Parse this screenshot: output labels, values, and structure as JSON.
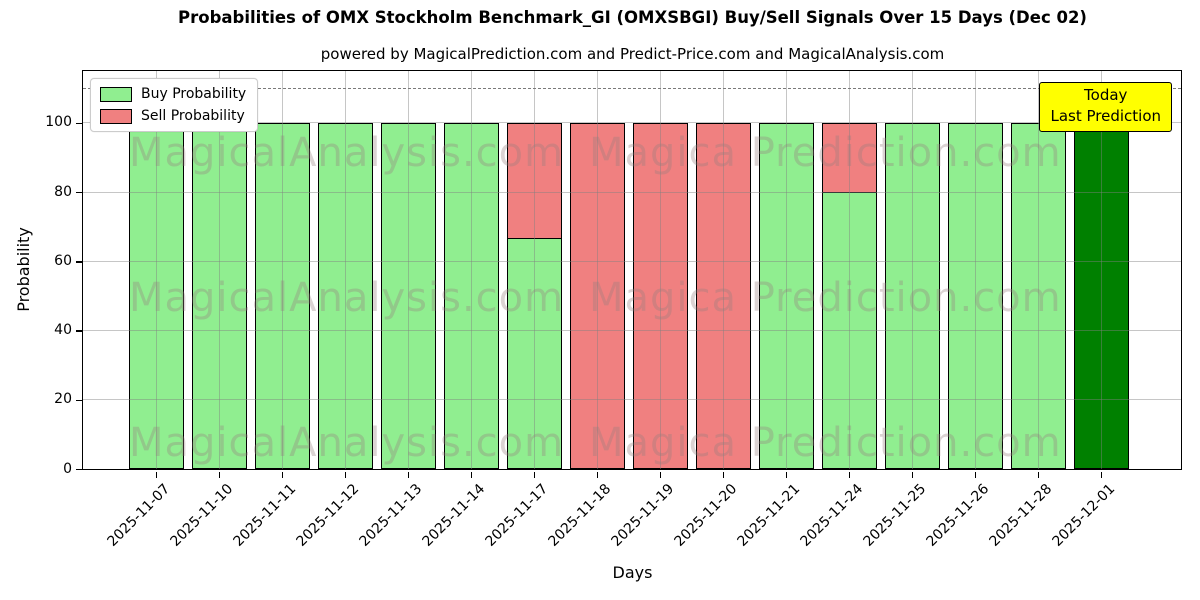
{
  "title": "Probabilities of OMX Stockholm Benchmark_GI (OMXSBGI) Buy/Sell Signals Over 15 Days (Dec 02)",
  "subtitle": "powered by MagicalPrediction.com and Predict-Price.com and MagicalAnalysis.com",
  "legend": {
    "items": [
      {
        "label": "Buy Probability",
        "color": "#90EE90"
      },
      {
        "label": "Sell Probability",
        "color": "#F08080"
      }
    ]
  },
  "annotation": {
    "line1": "Today",
    "line2": "Last Prediction",
    "bg_color": "#ffff00"
  },
  "watermark": {
    "left_text": "MagicalAnalysis.com",
    "right_text": "Magica Prediction.com"
  },
  "chart_data": {
    "type": "bar",
    "stacked": true,
    "title": "Probabilities of OMX Stockholm Benchmark_GI (OMXSBGI) Buy/Sell Signals Over 15 Days (Dec 02)",
    "xlabel": "Days",
    "ylabel": "Probability",
    "categories": [
      "2025-11-07",
      "2025-11-10",
      "2025-11-11",
      "2025-11-12",
      "2025-11-13",
      "2025-11-14",
      "2025-11-17",
      "2025-11-18",
      "2025-11-19",
      "2025-11-20",
      "2025-11-21",
      "2025-11-24",
      "2025-11-25",
      "2025-11-26",
      "2025-11-28",
      "2025-12-01"
    ],
    "series": [
      {
        "name": "Buy Probability",
        "color": "#90EE90",
        "values": [
          100,
          100,
          100,
          100,
          100,
          100,
          66.7,
          0,
          0,
          0,
          100,
          80,
          100,
          100,
          100,
          100
        ]
      },
      {
        "name": "Sell Probability",
        "color": "#F08080",
        "values": [
          0,
          0,
          0,
          0,
          0,
          0,
          33.3,
          100,
          100,
          100,
          0,
          20,
          0,
          0,
          0,
          0
        ]
      }
    ],
    "today_bar": {
      "index": 15,
      "color": "#008000",
      "label": "Today / Last Prediction"
    },
    "yticks": [
      0,
      20,
      40,
      60,
      80,
      100
    ],
    "ylim": [
      0,
      115
    ],
    "dashed_line_y": 110,
    "grid": true,
    "legend_position": "upper left"
  }
}
